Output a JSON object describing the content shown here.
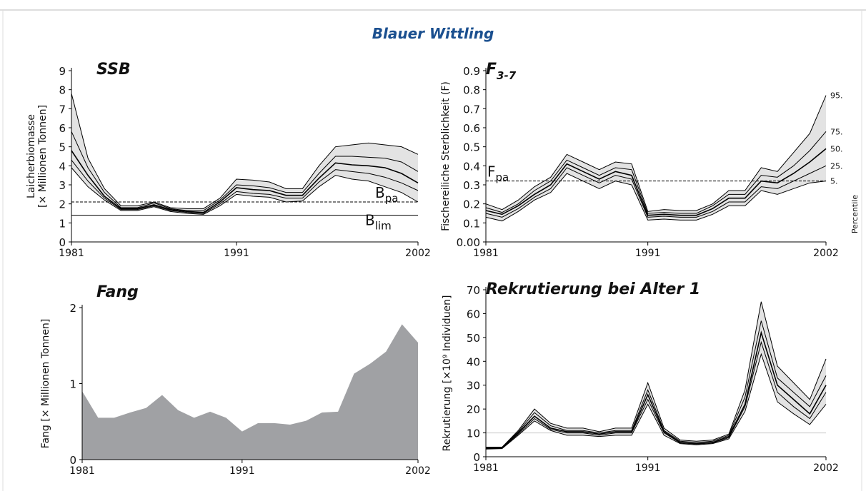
{
  "title": "Blauer Wittling",
  "chart_data": [
    {
      "type": "line",
      "title": "SSB",
      "ylabel": [
        "Laicherbiomasse",
        "[× Millionen Tonnen]"
      ],
      "x": [
        1981,
        1982,
        1983,
        1984,
        1985,
        1986,
        1987,
        1988,
        1989,
        1990,
        1991,
        1992,
        1993,
        1994,
        1995,
        1996,
        1997,
        1998,
        1999,
        2000,
        2001,
        2002
      ],
      "xlim": [
        1981,
        2002
      ],
      "xticks": [
        1981,
        1991,
        2002
      ],
      "ylim": [
        0,
        9
      ],
      "yticks": [
        0,
        1,
        2,
        3,
        4,
        5,
        6,
        7,
        8,
        9
      ],
      "band_color": "#e3e3e3",
      "series": [
        {
          "color": "#000000",
          "values": [
            7.8,
            4.4,
            2.8,
            1.9,
            1.9,
            2.1,
            1.8,
            1.75,
            1.75,
            2.3,
            3.3,
            3.25,
            3.15,
            2.8,
            2.8,
            4.0,
            5.0,
            5.1,
            5.2,
            5.1,
            5.0,
            4.6
          ]
        },
        {
          "color": "#000000",
          "values": [
            5.8,
            3.9,
            2.6,
            1.8,
            1.8,
            2.05,
            1.75,
            1.65,
            1.65,
            2.2,
            3.0,
            2.95,
            2.85,
            2.6,
            2.6,
            3.6,
            4.5,
            4.5,
            4.45,
            4.4,
            4.2,
            3.7
          ]
        },
        {
          "color": "#000000",
          "values": [
            4.8,
            3.5,
            2.4,
            1.75,
            1.75,
            1.95,
            1.7,
            1.6,
            1.55,
            2.1,
            2.85,
            2.75,
            2.7,
            2.45,
            2.45,
            3.35,
            4.15,
            4.05,
            4.0,
            3.9,
            3.6,
            3.1
          ]
        },
        {
          "color": "#000000",
          "values": [
            4.3,
            3.2,
            2.3,
            1.7,
            1.7,
            1.9,
            1.65,
            1.55,
            1.5,
            2.0,
            2.65,
            2.55,
            2.5,
            2.3,
            2.3,
            3.15,
            3.8,
            3.7,
            3.6,
            3.4,
            3.1,
            2.7
          ]
        },
        {
          "color": "#000000",
          "values": [
            3.9,
            2.9,
            2.2,
            1.65,
            1.65,
            1.85,
            1.6,
            1.5,
            1.45,
            1.9,
            2.5,
            2.4,
            2.35,
            2.1,
            2.15,
            2.9,
            3.5,
            3.3,
            3.2,
            2.9,
            2.6,
            2.1
          ]
        }
      ],
      "hlines": [
        {
          "value": 2.1,
          "label": "B",
          "sub": "pa",
          "style": "dashed",
          "color": "#000000"
        },
        {
          "value": 1.4,
          "label": "B",
          "sub": "lim",
          "style": "solid",
          "color": "#000000"
        }
      ]
    },
    {
      "type": "line",
      "title": "F",
      "title_sub": "3-7",
      "ylabel": [
        "Fischereiliche Sterblichkeit (F)"
      ],
      "x": [
        1981,
        1982,
        1983,
        1984,
        1985,
        1986,
        1987,
        1988,
        1989,
        1990,
        1991,
        1992,
        1993,
        1994,
        1995,
        1996,
        1997,
        1998,
        1999,
        2000,
        2001,
        2002
      ],
      "xlim": [
        1981,
        2002
      ],
      "xticks": [
        1981,
        1991,
        2002
      ],
      "ylim": [
        0,
        0.9
      ],
      "yticks": [
        {
          "value": 0,
          "label": "0.00"
        },
        0.1,
        0.2,
        0.3,
        0.4,
        0.5,
        0.6,
        0.7,
        0.8,
        0.9
      ],
      "band_color": "#e3e3e3",
      "legend_title": "Percentile",
      "series": [
        {
          "name": "95.",
          "color": "#000000",
          "values": [
            0.2,
            0.17,
            0.22,
            0.29,
            0.34,
            0.46,
            0.42,
            0.38,
            0.42,
            0.41,
            0.16,
            0.17,
            0.165,
            0.165,
            0.2,
            0.27,
            0.27,
            0.39,
            0.37,
            0.47,
            0.57,
            0.77
          ]
        },
        {
          "name": "75.",
          "color": "#000000",
          "values": [
            0.18,
            0.155,
            0.2,
            0.27,
            0.32,
            0.43,
            0.39,
            0.35,
            0.39,
            0.38,
            0.15,
            0.155,
            0.15,
            0.15,
            0.19,
            0.25,
            0.25,
            0.35,
            0.34,
            0.4,
            0.48,
            0.58
          ]
        },
        {
          "name": "50.",
          "color": "#000000",
          "values": [
            0.165,
            0.145,
            0.19,
            0.25,
            0.3,
            0.41,
            0.37,
            0.33,
            0.37,
            0.35,
            0.14,
            0.145,
            0.14,
            0.14,
            0.175,
            0.23,
            0.23,
            0.32,
            0.31,
            0.36,
            0.42,
            0.49
          ]
        },
        {
          "name": "25.",
          "color": "#000000",
          "values": [
            0.15,
            0.13,
            0.175,
            0.235,
            0.28,
            0.39,
            0.35,
            0.31,
            0.35,
            0.33,
            0.13,
            0.135,
            0.13,
            0.13,
            0.16,
            0.21,
            0.21,
            0.29,
            0.28,
            0.32,
            0.36,
            0.4
          ]
        },
        {
          "name": "5.",
          "color": "#000000",
          "values": [
            0.13,
            0.11,
            0.16,
            0.22,
            0.26,
            0.36,
            0.32,
            0.28,
            0.32,
            0.3,
            0.115,
            0.12,
            0.115,
            0.115,
            0.145,
            0.19,
            0.19,
            0.27,
            0.25,
            0.28,
            0.31,
            0.32
          ]
        }
      ],
      "hlines": [
        {
          "value": 0.32,
          "label": "F",
          "sub": "pa",
          "style": "dashed",
          "color": "#000000"
        }
      ]
    },
    {
      "type": "area",
      "title": "Fang",
      "ylabel": [
        "Fang [× Millionen Tonnen]"
      ],
      "x": [
        1981,
        1982,
        1983,
        1984,
        1985,
        1986,
        1987,
        1988,
        1989,
        1990,
        1991,
        1992,
        1993,
        1994,
        1995,
        1996,
        1997,
        1998,
        1999,
        2000,
        2001,
        2002
      ],
      "xlim": [
        1981,
        2002
      ],
      "xticks": [
        1981,
        1991,
        2002
      ],
      "ylim": [
        0,
        2
      ],
      "yticks": [
        0,
        1,
        2
      ],
      "color": "#a0a1a4",
      "values": [
        0.9,
        0.55,
        0.55,
        0.62,
        0.68,
        0.85,
        0.65,
        0.55,
        0.63,
        0.55,
        0.37,
        0.48,
        0.48,
        0.46,
        0.51,
        0.62,
        0.63,
        1.13,
        1.26,
        1.42,
        1.78,
        1.54
      ]
    },
    {
      "type": "line",
      "title": "Rekrutierung bei Alter 1",
      "ylabel": [
        "Rekrutierung [×10⁹ Individuen]"
      ],
      "x": [
        1981,
        1982,
        1983,
        1984,
        1985,
        1986,
        1987,
        1988,
        1989,
        1990,
        1991,
        1992,
        1993,
        1994,
        1995,
        1996,
        1997,
        1998,
        1999,
        2000,
        2001,
        2002
      ],
      "xlim": [
        1981,
        2002
      ],
      "xticks": [
        1981,
        1991,
        2002
      ],
      "ylim": [
        0,
        70
      ],
      "yticks": [
        0,
        10,
        20,
        30,
        40,
        50,
        60,
        70
      ],
      "band_color": "#e3e3e3",
      "series": [
        {
          "color": "#000000",
          "values": [
            4,
            4,
            11,
            20,
            14,
            12,
            12,
            10.5,
            12,
            12,
            31,
            12,
            7,
            6.5,
            7,
            9.5,
            28,
            65,
            38,
            31,
            24,
            41
          ]
        },
        {
          "color": "#000000",
          "values": [
            3.8,
            4,
            10.5,
            18.5,
            13,
            11,
            11,
            10,
            11,
            11,
            28,
            11,
            6.5,
            6,
            6.5,
            9,
            25,
            57,
            33,
            27,
            21,
            34
          ]
        },
        {
          "color": "#000000",
          "values": [
            3.6,
            3.8,
            10,
            17,
            12,
            10.5,
            10.5,
            9.5,
            10.5,
            10.5,
            26,
            10.5,
            6,
            5.5,
            6,
            8.5,
            22,
            52,
            30,
            24,
            18,
            30
          ]
        },
        {
          "color": "#000000",
          "values": [
            3.4,
            3.6,
            9.5,
            16,
            11.5,
            10,
            10,
            9,
            10,
            10,
            24,
            10,
            5.8,
            5.3,
            5.8,
            8,
            21,
            48,
            27,
            21,
            16,
            27
          ]
        },
        {
          "color": "#000000",
          "values": [
            3.2,
            3.4,
            9,
            15,
            11,
            9,
            9,
            8.5,
            9,
            9,
            22,
            9,
            5.5,
            5,
            5.5,
            7.5,
            19,
            43,
            23,
            18,
            13.5,
            22
          ]
        }
      ],
      "hlines": [
        {
          "value": 10,
          "style": "solid",
          "color": "#c8c8c8"
        }
      ]
    }
  ]
}
